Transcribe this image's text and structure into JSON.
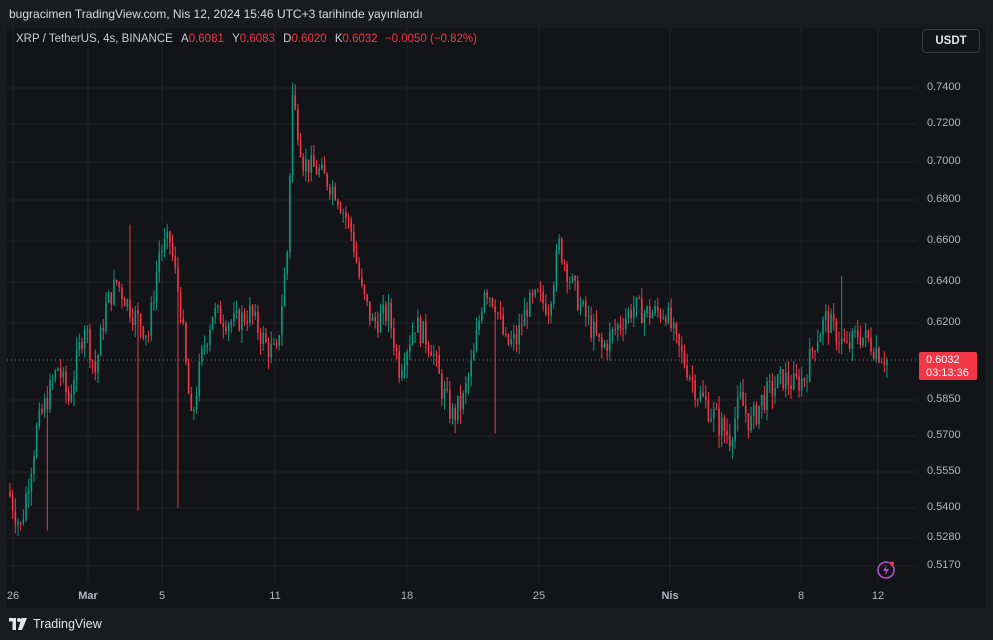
{
  "header": {
    "publish_info": "bugracimen TradingView.com, Nis 12, 2024 15:46 UTC+3 tarihinde yayınlandı"
  },
  "legend": {
    "symbol": "XRP / TetherUS, 4s, BINANCE",
    "open_label": "A",
    "open_value": "0.6081",
    "high_label": "Y",
    "high_value": "0.6083",
    "low_label": "D",
    "low_value": "0.6020",
    "close_label": "K",
    "close_value": "0.6032",
    "change": "−0.0050 (−0.82%)"
  },
  "currency_button": "USDT",
  "price_tag": {
    "price": "0.6032",
    "countdown": "03:13:36"
  },
  "footer": {
    "brand": "TradingView"
  },
  "colors": {
    "up": "#089981",
    "down": "#f23645",
    "background": "#131418",
    "grid": "#222428"
  },
  "chart_data": {
    "type": "candlestick",
    "symbol": "XRP / TetherUS",
    "interval": "4s",
    "exchange": "BINANCE",
    "y_ticks": [
      "0.7400",
      "0.7200",
      "0.7000",
      "0.6800",
      "0.6600",
      "0.6400",
      "0.6200",
      "0.5850",
      "0.5700",
      "0.5550",
      "0.5400",
      "0.5280",
      "0.5170"
    ],
    "x_ticks": [
      "26",
      "Mar",
      "5",
      "11",
      "18",
      "25",
      "Nis",
      "8",
      "12"
    ],
    "y_range": [
      0.512,
      0.752
    ],
    "last_price": 0.6032,
    "anchors": [
      {
        "bar": 0,
        "price": 0.545
      },
      {
        "bar": 4,
        "price": 0.532
      },
      {
        "bar": 10,
        "price": 0.572
      },
      {
        "bar": 18,
        "price": 0.6
      },
      {
        "bar": 22,
        "price": 0.585
      },
      {
        "bar": 28,
        "price": 0.62
      },
      {
        "bar": 32,
        "price": 0.598
      },
      {
        "bar": 36,
        "price": 0.628
      },
      {
        "bar": 40,
        "price": 0.64
      },
      {
        "bar": 46,
        "price": 0.625
      },
      {
        "bar": 52,
        "price": 0.615
      },
      {
        "bar": 56,
        "price": 0.655
      },
      {
        "bar": 60,
        "price": 0.66
      },
      {
        "bar": 64,
        "price": 0.628
      },
      {
        "bar": 66,
        "price": 0.6
      },
      {
        "bar": 68,
        "price": 0.575
      },
      {
        "bar": 72,
        "price": 0.605
      },
      {
        "bar": 76,
        "price": 0.625
      },
      {
        "bar": 84,
        "price": 0.62
      },
      {
        "bar": 90,
        "price": 0.625
      },
      {
        "bar": 96,
        "price": 0.61
      },
      {
        "bar": 100,
        "price": 0.605
      },
      {
        "bar": 104,
        "price": 0.655
      },
      {
        "bar": 106,
        "price": 0.735
      },
      {
        "bar": 110,
        "price": 0.7
      },
      {
        "bar": 116,
        "price": 0.695
      },
      {
        "bar": 122,
        "price": 0.685
      },
      {
        "bar": 128,
        "price": 0.665
      },
      {
        "bar": 132,
        "price": 0.635
      },
      {
        "bar": 136,
        "price": 0.62
      },
      {
        "bar": 142,
        "price": 0.625
      },
      {
        "bar": 146,
        "price": 0.6
      },
      {
        "bar": 152,
        "price": 0.62
      },
      {
        "bar": 158,
        "price": 0.61
      },
      {
        "bar": 162,
        "price": 0.59
      },
      {
        "bar": 166,
        "price": 0.578
      },
      {
        "bar": 170,
        "price": 0.585
      },
      {
        "bar": 174,
        "price": 0.605
      },
      {
        "bar": 178,
        "price": 0.638
      },
      {
        "bar": 182,
        "price": 0.63
      },
      {
        "bar": 186,
        "price": 0.61
      },
      {
        "bar": 190,
        "price": 0.612
      },
      {
        "bar": 194,
        "price": 0.628
      },
      {
        "bar": 198,
        "price": 0.632
      },
      {
        "bar": 202,
        "price": 0.628
      },
      {
        "bar": 206,
        "price": 0.658
      },
      {
        "bar": 210,
        "price": 0.642
      },
      {
        "bar": 214,
        "price": 0.628
      },
      {
        "bar": 218,
        "price": 0.618
      },
      {
        "bar": 222,
        "price": 0.608
      },
      {
        "bar": 226,
        "price": 0.615
      },
      {
        "bar": 230,
        "price": 0.622
      },
      {
        "bar": 234,
        "price": 0.628
      },
      {
        "bar": 238,
        "price": 0.625
      },
      {
        "bar": 242,
        "price": 0.625
      },
      {
        "bar": 246,
        "price": 0.626
      },
      {
        "bar": 250,
        "price": 0.61
      },
      {
        "bar": 254,
        "price": 0.6
      },
      {
        "bar": 258,
        "price": 0.588
      },
      {
        "bar": 262,
        "price": 0.582
      },
      {
        "bar": 266,
        "price": 0.575
      },
      {
        "bar": 270,
        "price": 0.57
      },
      {
        "bar": 274,
        "price": 0.585
      },
      {
        "bar": 278,
        "price": 0.575
      },
      {
        "bar": 282,
        "price": 0.585
      },
      {
        "bar": 286,
        "price": 0.59
      },
      {
        "bar": 290,
        "price": 0.595
      },
      {
        "bar": 294,
        "price": 0.592
      },
      {
        "bar": 298,
        "price": 0.595
      },
      {
        "bar": 302,
        "price": 0.612
      },
      {
        "bar": 306,
        "price": 0.622
      },
      {
        "bar": 310,
        "price": 0.615
      },
      {
        "bar": 314,
        "price": 0.608
      },
      {
        "bar": 318,
        "price": 0.615
      },
      {
        "bar": 322,
        "price": 0.612
      },
      {
        "bar": 326,
        "price": 0.607
      },
      {
        "bar": 329,
        "price": 0.6032
      }
    ]
  }
}
